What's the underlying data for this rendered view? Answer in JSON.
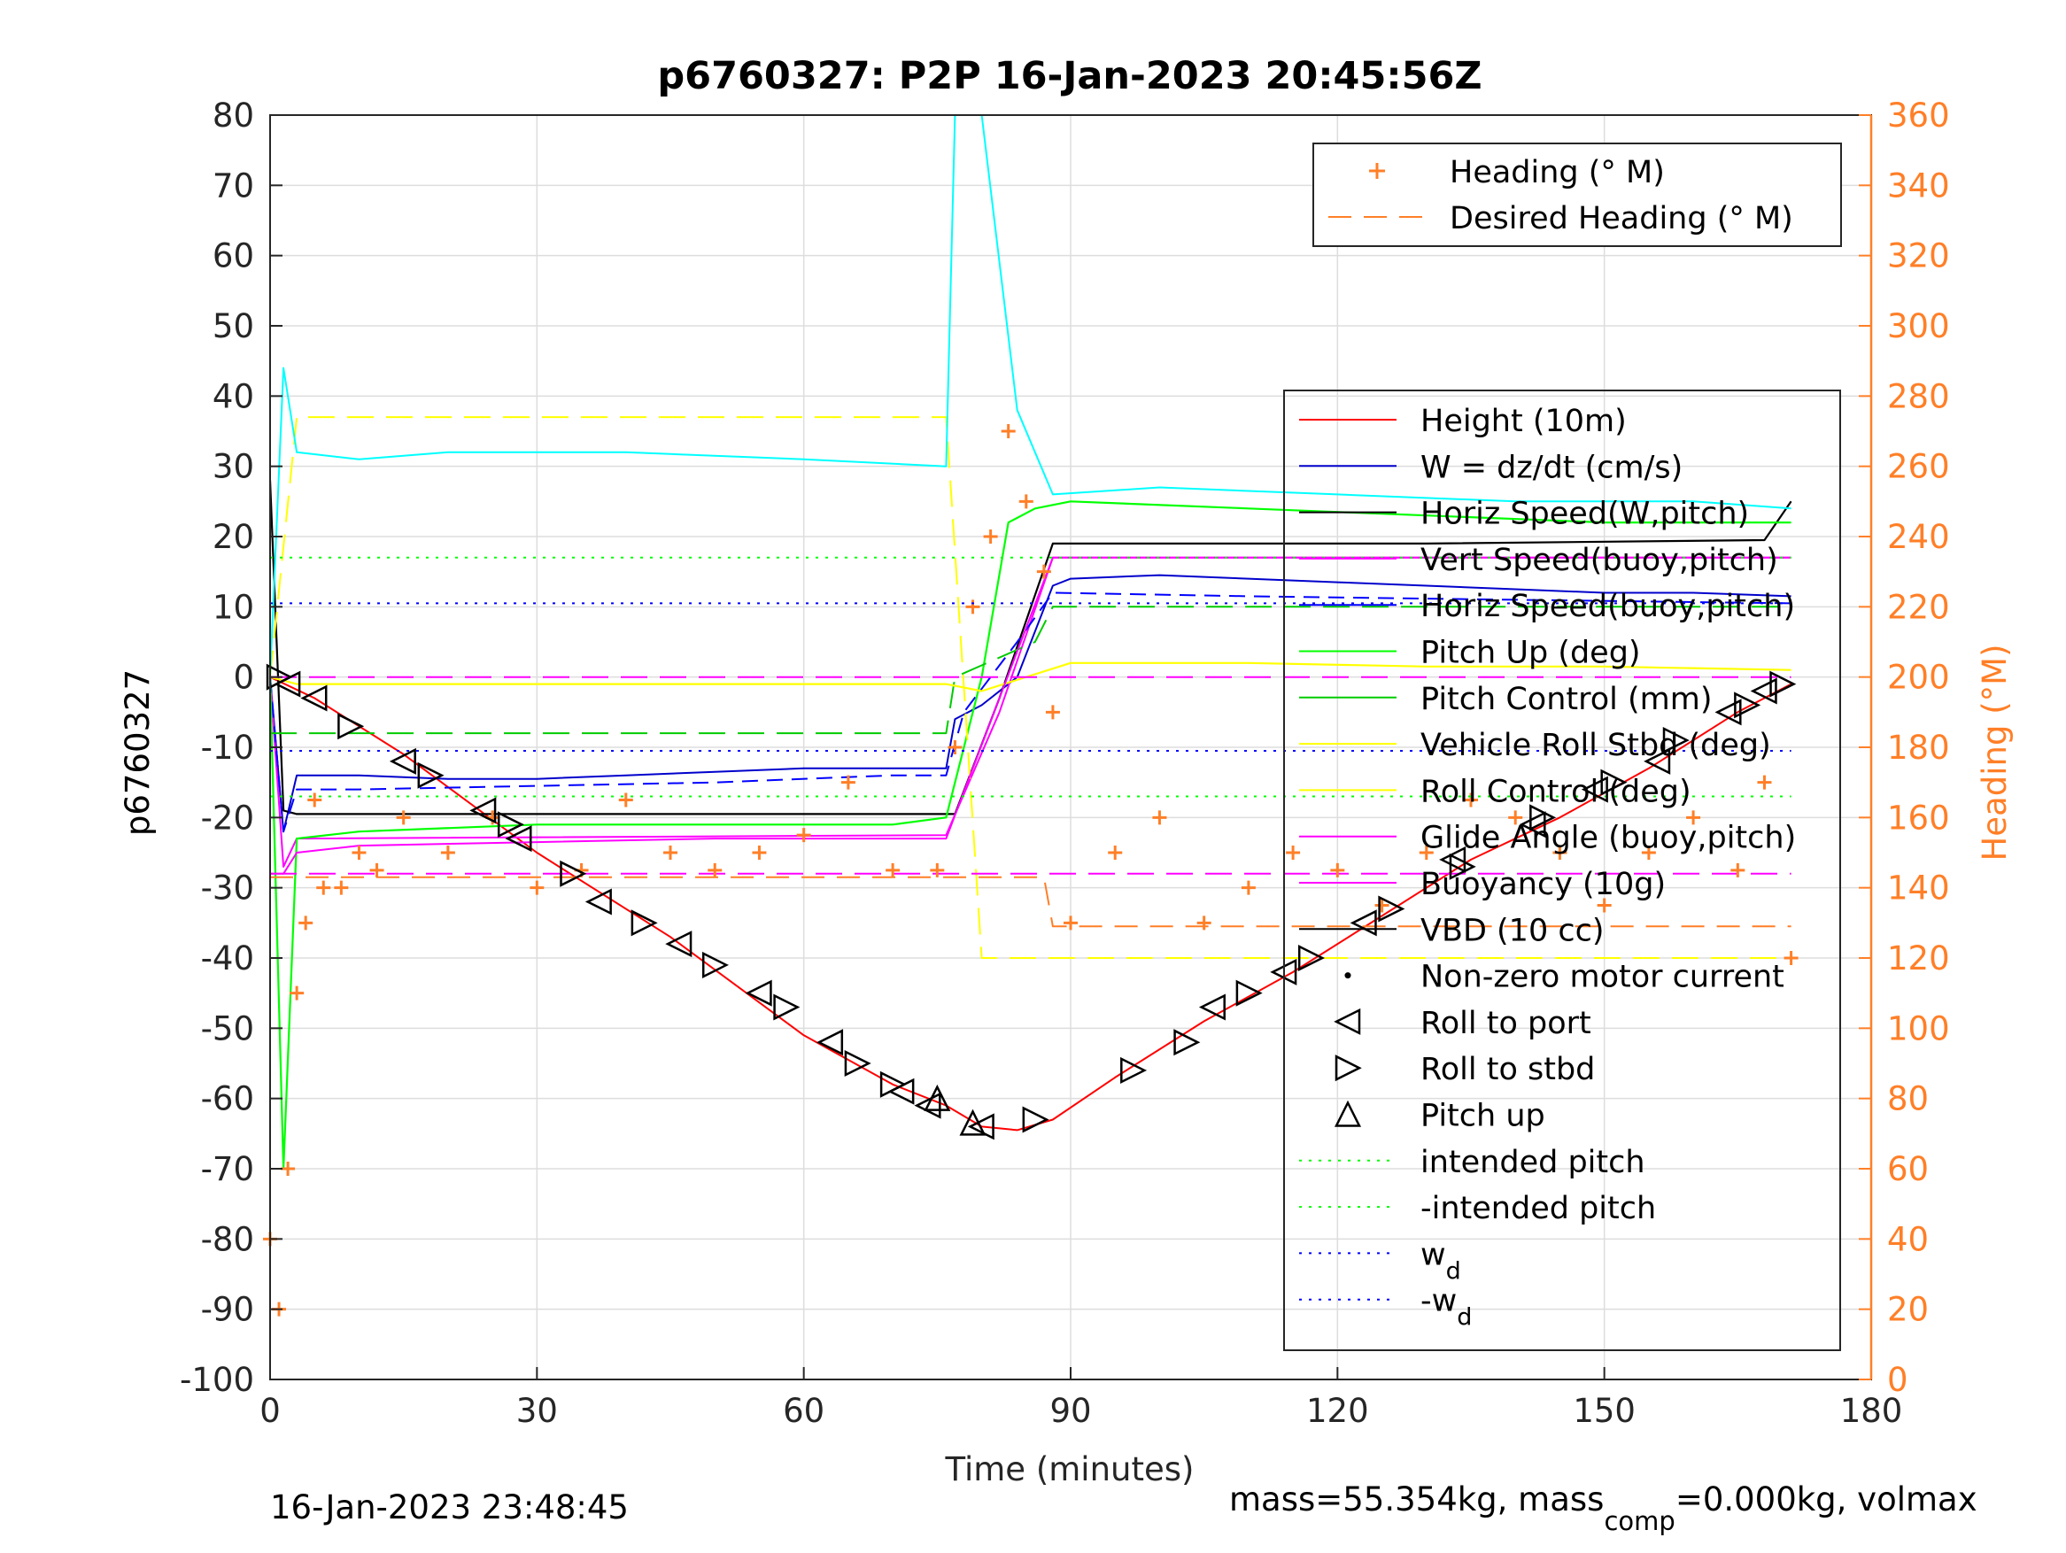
{
  "chart_data": {
    "type": "line",
    "title": "p6760327: P2P 16-Jan-2023 20:45:56Z",
    "xlabel": "Time (minutes)",
    "ylabel": "p6760327",
    "ylabel_right": "Heading (°M)",
    "xlim": [
      0,
      180
    ],
    "ylim": [
      -100,
      80
    ],
    "ylim_right": [
      0,
      360
    ],
    "x_ticks": [
      0,
      30,
      60,
      90,
      120,
      150,
      180
    ],
    "y_ticks": [
      80,
      70,
      60,
      50,
      40,
      30,
      20,
      10,
      0,
      -10,
      -20,
      -30,
      -40,
      -50,
      -60,
      -70,
      -80,
      -90,
      -100
    ],
    "y_ticks_right": [
      360,
      340,
      320,
      300,
      280,
      260,
      240,
      220,
      200,
      180,
      160,
      140,
      120,
      100,
      80,
      60,
      40,
      20,
      0
    ],
    "grid": true,
    "colors": {
      "height": "#ff0000",
      "w": "#0000cc",
      "horiz_speed_w": "#000000",
      "vert_speed_buoy": "#ff00ff",
      "horiz_speed_buoy": "#0000ff",
      "pitch_up": "#00ff00",
      "pitch_control": "#00cc00",
      "vehicle_roll": "#ffff00",
      "roll_control": "#ffff00",
      "glide_angle": "#ff00ff",
      "buoyancy": "#ff00ff",
      "vbd": "#000000",
      "heading": "#ff7f27",
      "desired_heading": "#ff7f27",
      "horiz_speed_cyan": "#00ffff",
      "intended_pitch": "#00ff00",
      "wd": "#0000ff"
    },
    "legend_right_top": [
      {
        "label": "Heading (° M)",
        "marker": "plus"
      },
      {
        "label": "Desired Heading (° M)",
        "marker": "dash"
      }
    ],
    "legend_main": [
      {
        "label": "Height (10m)",
        "marker": "line",
        "color": "#ff0000"
      },
      {
        "label": "W = dz/dt (cm/s)",
        "marker": "line",
        "color": "#0000cc"
      },
      {
        "label": "Horiz Speed(W,pitch)",
        "marker": "line",
        "color": "#000000"
      },
      {
        "label": "Vert Speed(buoy,pitch)",
        "marker": "line",
        "color": "#ff00ff"
      },
      {
        "label": "Horiz Speed(buoy,pitch)",
        "marker": "line",
        "color": "#0000ff"
      },
      {
        "label": "Pitch Up (deg)",
        "marker": "line",
        "color": "#00ff00"
      },
      {
        "label": "Pitch Control (mm)",
        "marker": "line",
        "color": "#00cc00"
      },
      {
        "label": "Vehicle Roll Stbd (deg)",
        "marker": "line",
        "color": "#ffff00"
      },
      {
        "label": "Roll Control (deg)",
        "marker": "line",
        "color": "#ffff00"
      },
      {
        "label": "Glide Angle (buoy,pitch)",
        "marker": "line",
        "color": "#ff00ff"
      },
      {
        "label": "Buoyancy (10g)",
        "marker": "line",
        "color": "#ff00ff"
      },
      {
        "label": "VBD (10 cc)",
        "marker": "line",
        "color": "#000000"
      },
      {
        "label": "Non-zero motor current",
        "marker": "dot",
        "color": "#000000"
      },
      {
        "label": "Roll to port",
        "marker": "tri-left",
        "color": "#000000"
      },
      {
        "label": "Roll to stbd",
        "marker": "tri-right",
        "color": "#000000"
      },
      {
        "label": "Pitch up",
        "marker": "tri-up",
        "color": "#000000"
      },
      {
        "label": "intended pitch",
        "marker": "dotted",
        "color": "#00ff00"
      },
      {
        "label": "-intended pitch",
        "marker": "dotted",
        "color": "#00ff00"
      },
      {
        "label": "w",
        "sub": "d",
        "marker": "dotted",
        "color": "#0000ff"
      },
      {
        "label": "-w",
        "sub": "d",
        "marker": "dotted",
        "color": "#0000ff"
      }
    ],
    "series": [
      {
        "name": "Height (10m)",
        "x": [
          0,
          5,
          15,
          30,
          45,
          60,
          70,
          76,
          80,
          84,
          88,
          95,
          105,
          115,
          125,
          135,
          145,
          155,
          165,
          171
        ],
        "y": [
          0,
          -3,
          -11,
          -25,
          -37,
          -51,
          -58,
          -61,
          -64,
          -64.5,
          -63,
          -57,
          -49,
          -42,
          -34,
          -26,
          -20,
          -13,
          -5,
          -1
        ]
      },
      {
        "name": "W = dz/dt (cm/s)",
        "x": [
          0,
          1.5,
          3,
          10,
          20,
          30,
          40,
          50,
          60,
          70,
          76,
          77,
          80,
          84,
          88,
          90,
          100,
          110,
          120,
          130,
          140,
          150,
          160,
          171
        ],
        "y": [
          0,
          -22,
          -14,
          -14,
          -14.5,
          -14.5,
          -14,
          -13.5,
          -13,
          -13,
          -13,
          -6,
          -4,
          0,
          13,
          14,
          14.5,
          14,
          13.5,
          13,
          12.5,
          12,
          12,
          11.5
        ]
      },
      {
        "name": "Horiz Speed(W,pitch)",
        "x": [
          0,
          1.5,
          3,
          76,
          77,
          82,
          88,
          95,
          130,
          168,
          171
        ],
        "y": [
          28,
          -19,
          -19.5,
          -19.5,
          -19.5,
          -3,
          19,
          19,
          19,
          19.5,
          25
        ]
      },
      {
        "name": "Vert Speed(buoy,pitch)",
        "x": [
          0,
          1.5,
          3,
          76,
          82,
          88,
          171
        ],
        "y": [
          0,
          -27,
          -23,
          -22.5,
          -5,
          17,
          17
        ]
      },
      {
        "name": "Horiz Speed(buoy,pitch)",
        "x": [
          0,
          1.5,
          3,
          10,
          30,
          50,
          70,
          76,
          78,
          84,
          88,
          110,
          140,
          171
        ],
        "y": [
          0,
          -22,
          -16,
          -16,
          -15.5,
          -15,
          -14,
          -14,
          -5,
          5,
          12,
          11.5,
          11,
          10.5
        ]
      },
      {
        "name": "Pitch Up (deg)",
        "x": [
          0,
          1.5,
          3,
          10,
          30,
          50,
          70,
          76,
          80,
          83,
          86,
          90,
          110,
          130,
          150,
          171
        ],
        "y": [
          0,
          -70,
          -23,
          -22,
          -21,
          -21,
          -21,
          -20,
          0,
          22,
          24,
          25,
          24,
          23,
          22,
          22
        ]
      },
      {
        "name": "Pitch Control (mm)",
        "x": [
          0,
          1,
          76,
          77,
          86,
          88,
          171
        ],
        "y": [
          -8,
          -8,
          -8,
          0,
          5,
          10,
          10
        ]
      },
      {
        "name": "Vehicle Roll Stbd (deg)",
        "x": [
          0,
          3,
          20,
          40,
          60,
          76,
          80,
          90,
          110,
          130,
          150,
          171
        ],
        "y": [
          0,
          -1,
          -1,
          -1,
          -1,
          -1,
          -2,
          2,
          2,
          1.5,
          1.5,
          1
        ]
      },
      {
        "name": "Roll Control (deg)",
        "x": [
          0,
          3,
          76,
          80,
          171
        ],
        "y": [
          0,
          37,
          37,
          -40,
          -40
        ]
      },
      {
        "name": "Glide Angle (buoy,pitch)",
        "x": [
          0,
          1.5,
          3,
          10,
          30,
          50,
          76,
          82,
          88,
          171
        ],
        "y": [
          -28,
          -28,
          -25,
          -24,
          -23.5,
          -23,
          -23,
          -3,
          17,
          17
        ]
      },
      {
        "name": "Buoyancy (10g)",
        "x": [
          0,
          76,
          77,
          171
        ],
        "y": [
          -28,
          -28,
          -28,
          -28
        ]
      },
      {
        "name": "VBD (10 cc)",
        "x": [
          0,
          76,
          77,
          171
        ],
        "y": [
          0,
          0,
          0,
          0
        ]
      },
      {
        "name": "Horiz Speed(buoy,pitch) cyan",
        "x": [
          0,
          1.5,
          3,
          10,
          20,
          40,
          60,
          76,
          77,
          80,
          84,
          88,
          100,
          120,
          140,
          160,
          171
        ],
        "y": [
          0,
          44,
          32,
          31,
          32,
          32,
          31,
          30,
          80,
          80,
          38,
          26,
          27,
          26,
          25,
          25,
          24
        ]
      },
      {
        "name": "Heading (° M)",
        "x": [
          0,
          1,
          2,
          3,
          4,
          5,
          6,
          8,
          10,
          12,
          15,
          20,
          25,
          30,
          35,
          40,
          45,
          50,
          55,
          60,
          65,
          70,
          75,
          77,
          79,
          81,
          83,
          85,
          87,
          88,
          90,
          95,
          100,
          105,
          110,
          115,
          120,
          125,
          130,
          135,
          140,
          145,
          150,
          155,
          160,
          165,
          168,
          171
        ],
        "y": [
          40,
          20,
          60,
          110,
          130,
          165,
          140,
          140,
          150,
          145,
          160,
          150,
          160,
          140,
          145,
          165,
          150,
          145,
          150,
          155,
          170,
          145,
          145,
          180,
          220,
          240,
          270,
          250,
          230,
          190,
          130,
          150,
          160,
          130,
          140,
          150,
          145,
          135,
          150,
          165,
          160,
          150,
          135,
          150,
          160,
          145,
          170,
          120
        ]
      },
      {
        "name": "Desired Heading (° M)",
        "x": [
          0,
          76,
          77,
          87,
          88,
          171
        ],
        "y": [
          143,
          143,
          143,
          143,
          129,
          129
        ]
      },
      {
        "name": "intended pitch",
        "x": [
          0,
          171
        ],
        "y": [
          17,
          17
        ]
      },
      {
        "name": "-intended pitch",
        "x": [
          0,
          171
        ],
        "y": [
          -17,
          -17
        ]
      },
      {
        "name": "w_d",
        "x": [
          0,
          171
        ],
        "y": [
          10.5,
          10.5
        ]
      },
      {
        "name": "-w_d",
        "x": [
          0,
          171
        ],
        "y": [
          -10.5,
          -10.5
        ]
      }
    ],
    "markers": {
      "roll_port": [
        [
          2,
          -1
        ],
        [
          5,
          -3
        ],
        [
          15,
          -12
        ],
        [
          24,
          -19
        ],
        [
          28,
          -23
        ],
        [
          37,
          -32
        ],
        [
          46,
          -38
        ],
        [
          55,
          -45
        ],
        [
          63,
          -52
        ],
        [
          71,
          -59
        ],
        [
          74,
          -61
        ],
        [
          80,
          -64
        ],
        [
          106,
          -47
        ],
        [
          114,
          -42
        ],
        [
          123,
          -35
        ],
        [
          133,
          -26
        ],
        [
          142,
          -21
        ],
        [
          149,
          -16
        ],
        [
          156,
          -12
        ],
        [
          164,
          -5
        ],
        [
          168,
          -2
        ]
      ],
      "roll_stbd": [
        [
          1,
          0
        ],
        [
          9,
          -7
        ],
        [
          18,
          -14
        ],
        [
          27,
          -21
        ],
        [
          34,
          -28
        ],
        [
          42,
          -35
        ],
        [
          50,
          -41
        ],
        [
          58,
          -47
        ],
        [
          66,
          -55
        ],
        [
          70,
          -58
        ],
        [
          86,
          -63
        ],
        [
          97,
          -56
        ],
        [
          103,
          -52
        ],
        [
          110,
          -45
        ],
        [
          117,
          -40
        ],
        [
          126,
          -33
        ],
        [
          134,
          -27
        ],
        [
          143,
          -20
        ],
        [
          151,
          -15
        ],
        [
          158,
          -9
        ],
        [
          166,
          -4
        ],
        [
          170,
          -1
        ]
      ],
      "pitch_up": [
        [
          75,
          -60
        ],
        [
          79,
          -63.5
        ]
      ]
    },
    "footer_left": "16-Jan-2023 23:48:45",
    "footer_right_prefix": "mass=55.354kg, mass",
    "footer_right_sub": "comp",
    "footer_right_suffix": "=0.000kg, volmax"
  }
}
